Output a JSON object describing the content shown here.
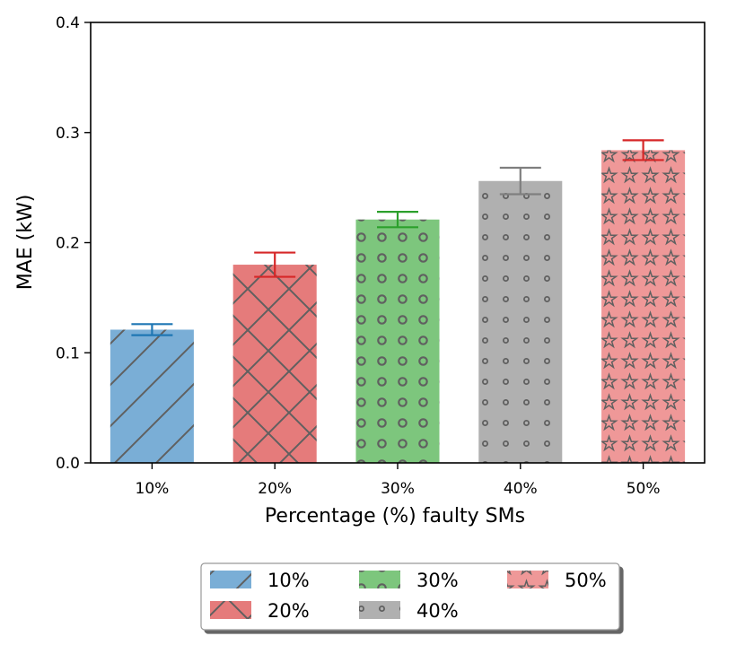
{
  "chart_data": {
    "type": "bar",
    "title": "",
    "xlabel": "Percentage (%) faulty SMs",
    "ylabel": "MAE (kW)",
    "ylim": [
      0,
      0.4
    ],
    "yticks": [
      "0.0",
      "0.1",
      "0.2",
      "0.3",
      "0.4"
    ],
    "categories": [
      "10%",
      "20%",
      "30%",
      "40%",
      "50%"
    ],
    "values": [
      0.121,
      0.18,
      0.221,
      0.256,
      0.284
    ],
    "errors": [
      0.005,
      0.011,
      0.007,
      0.012,
      0.009
    ],
    "colors": [
      "#7aaed6",
      "#e57b7b",
      "#7dc67d",
      "#b0b0b0",
      "#ef9898"
    ],
    "error_colors": [
      "#1f77b4",
      "#d62728",
      "#2ca02c",
      "#7f7f7f",
      "#d62728"
    ],
    "hatch_color": "#606060",
    "hatches": [
      "diagonal",
      "crosshatch",
      "rings",
      "dots",
      "stars"
    ],
    "legend": {
      "placement": "bottom-center",
      "columns": 3,
      "entries": [
        "10%",
        "20%",
        "30%",
        "40%",
        "50%"
      ]
    },
    "grid": false
  }
}
